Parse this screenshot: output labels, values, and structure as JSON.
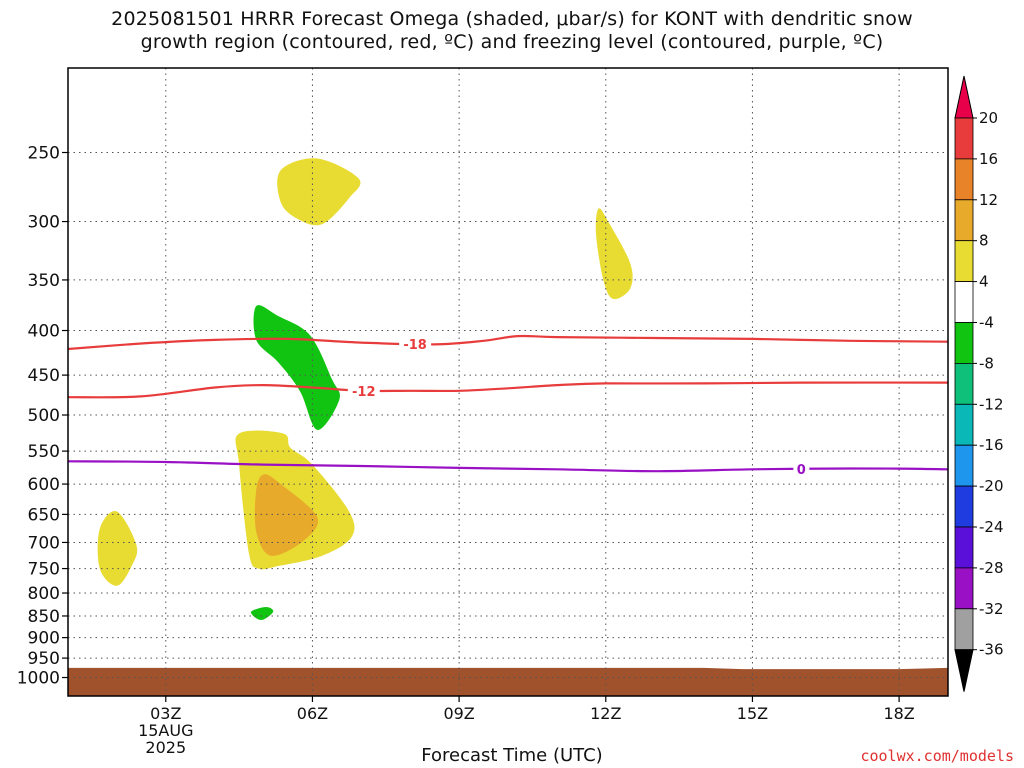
{
  "header": {
    "title_line1": "2025081501 HRRR Forecast Omega (shaded, μbar/s) for KONT with dendritic snow",
    "title_line2": "growth region (contoured, red, ºC) and freezing level (contoured, purple, ºC)"
  },
  "footer": {
    "xlabel": "Forecast Time (UTC)",
    "credit": "coolwx.com/models"
  },
  "chart_data": {
    "type": "heatmap",
    "x_axis": {
      "range_hours": [
        1.0,
        19.0
      ],
      "ticks": [
        {
          "hour": 3,
          "label": "03Z",
          "sublabels": [
            "15AUG",
            "2025"
          ]
        },
        {
          "hour": 6,
          "label": "06Z"
        },
        {
          "hour": 9,
          "label": "09Z"
        },
        {
          "hour": 12,
          "label": "12Z"
        },
        {
          "hour": 15,
          "label": "15Z"
        },
        {
          "hour": 18,
          "label": "18Z"
        }
      ]
    },
    "y_axis": {
      "unit": "hPa",
      "log_scale": true,
      "range": [
        1050,
        200
      ],
      "ticks": [
        250,
        300,
        350,
        400,
        450,
        500,
        550,
        600,
        650,
        700,
        750,
        800,
        850,
        900,
        950,
        1000
      ]
    },
    "grid": true,
    "colorbar": {
      "labels": [
        "20",
        "16",
        "12",
        "8",
        "4",
        "-4",
        "-8",
        "-12",
        "-16",
        "-20",
        "-24",
        "-28",
        "-32",
        "-36"
      ],
      "colors": [
        "#e8004a",
        "#e83c3c",
        "#e8832a",
        "#e8aa2a",
        "#e8dc32",
        "#ffffff",
        "#12c412",
        "#0ec07a",
        "#0ab8b8",
        "#1e96ee",
        "#1e3ce0",
        "#5a10d8",
        "#9a10c4",
        "#a0a0a0",
        "#000000"
      ]
    },
    "omega_regions": [
      {
        "level": "4 to 8",
        "color": "#e8dc32",
        "points": [
          [
            5.35,
            262
          ],
          [
            6.1,
            254
          ],
          [
            6.95,
            268
          ],
          [
            6.75,
            282
          ],
          [
            6.2,
            302
          ],
          [
            5.7,
            298
          ],
          [
            5.35,
            285
          ]
        ]
      },
      {
        "level": "4 to 8",
        "color": "#e8dc32",
        "points": [
          [
            11.85,
            290
          ],
          [
            12.05,
            300
          ],
          [
            12.5,
            335
          ],
          [
            12.5,
            358
          ],
          [
            12.15,
            368
          ],
          [
            11.95,
            350
          ],
          [
            11.8,
            310
          ]
        ]
      },
      {
        "level": "-4 to -8",
        "color": "#12c412",
        "points": [
          [
            4.85,
            375
          ],
          [
            5.3,
            385
          ],
          [
            5.95,
            405
          ],
          [
            6.4,
            455
          ],
          [
            6.55,
            480
          ],
          [
            6.1,
            520
          ],
          [
            5.75,
            470
          ],
          [
            5.3,
            435
          ],
          [
            4.85,
            410
          ]
        ]
      },
      {
        "level": "4 to 8",
        "color": "#e8dc32",
        "points": [
          [
            4.5,
            525
          ],
          [
            5.4,
            525
          ],
          [
            5.55,
            545
          ],
          [
            6.0,
            570
          ],
          [
            6.75,
            645
          ],
          [
            6.8,
            690
          ],
          [
            6.2,
            725
          ],
          [
            5.3,
            745
          ],
          [
            4.9,
            750
          ],
          [
            4.7,
            720
          ],
          [
            4.5,
            570
          ]
        ]
      },
      {
        "level": "8 to 12",
        "color": "#e8aa2a",
        "points": [
          [
            5.0,
            585
          ],
          [
            5.35,
            600
          ],
          [
            6.1,
            655
          ],
          [
            5.8,
            698
          ],
          [
            5.15,
            725
          ],
          [
            4.85,
            680
          ],
          [
            4.85,
            610
          ]
        ]
      },
      {
        "level": "4 to 8",
        "color": "#e8dc32",
        "points": [
          [
            1.65,
            675
          ],
          [
            2.0,
            645
          ],
          [
            2.4,
            705
          ],
          [
            2.3,
            745
          ],
          [
            2.0,
            785
          ],
          [
            1.65,
            750
          ]
        ]
      },
      {
        "level": "-4 to -8",
        "color": "#12c412",
        "points": [
          [
            4.75,
            840
          ],
          [
            5.05,
            830
          ],
          [
            5.2,
            840
          ],
          [
            5.0,
            858
          ],
          [
            4.85,
            855
          ]
        ]
      }
    ],
    "ground": {
      "color": "#a0522d",
      "top_hpa": [
        [
          1.0,
          975
        ],
        [
          14.0,
          975
        ],
        [
          14.8,
          978
        ],
        [
          18.0,
          978
        ],
        [
          19.0,
          975
        ]
      ]
    },
    "contours": [
      {
        "name": "-18",
        "color": "#e83c3c",
        "label_at_hour": 8.1,
        "points": [
          [
            1.0,
            420
          ],
          [
            2.5,
            414
          ],
          [
            4.0,
            410
          ],
          [
            5.5,
            409
          ],
          [
            7.0,
            413
          ],
          [
            8.5,
            415
          ],
          [
            9.5,
            411
          ],
          [
            10.2,
            406
          ],
          [
            11.0,
            407
          ],
          [
            13.0,
            408
          ],
          [
            15.0,
            409
          ],
          [
            17.0,
            411
          ],
          [
            19.0,
            412
          ]
        ]
      },
      {
        "name": "-12",
        "color": "#e83c3c",
        "label_at_hour": 7.05,
        "points": [
          [
            1.0,
            477
          ],
          [
            2.5,
            476
          ],
          [
            4.0,
            465
          ],
          [
            5.0,
            462
          ],
          [
            6.0,
            465
          ],
          [
            7.0,
            469
          ],
          [
            8.0,
            469
          ],
          [
            9.0,
            469
          ],
          [
            10.0,
            466
          ],
          [
            11.0,
            462
          ],
          [
            12.0,
            460
          ],
          [
            14.0,
            460
          ],
          [
            16.0,
            459
          ],
          [
            19.0,
            459
          ]
        ]
      },
      {
        "name": "0",
        "color": "#9a10c4",
        "label_at_hour": 16.0,
        "points": [
          [
            1.0,
            565
          ],
          [
            3.0,
            566
          ],
          [
            5.0,
            570
          ],
          [
            7.0,
            572
          ],
          [
            9.0,
            575
          ],
          [
            11.0,
            577
          ],
          [
            13.0,
            580
          ],
          [
            15.0,
            577
          ],
          [
            16.5,
            576
          ],
          [
            18.0,
            576
          ],
          [
            19.0,
            577
          ]
        ]
      }
    ]
  }
}
